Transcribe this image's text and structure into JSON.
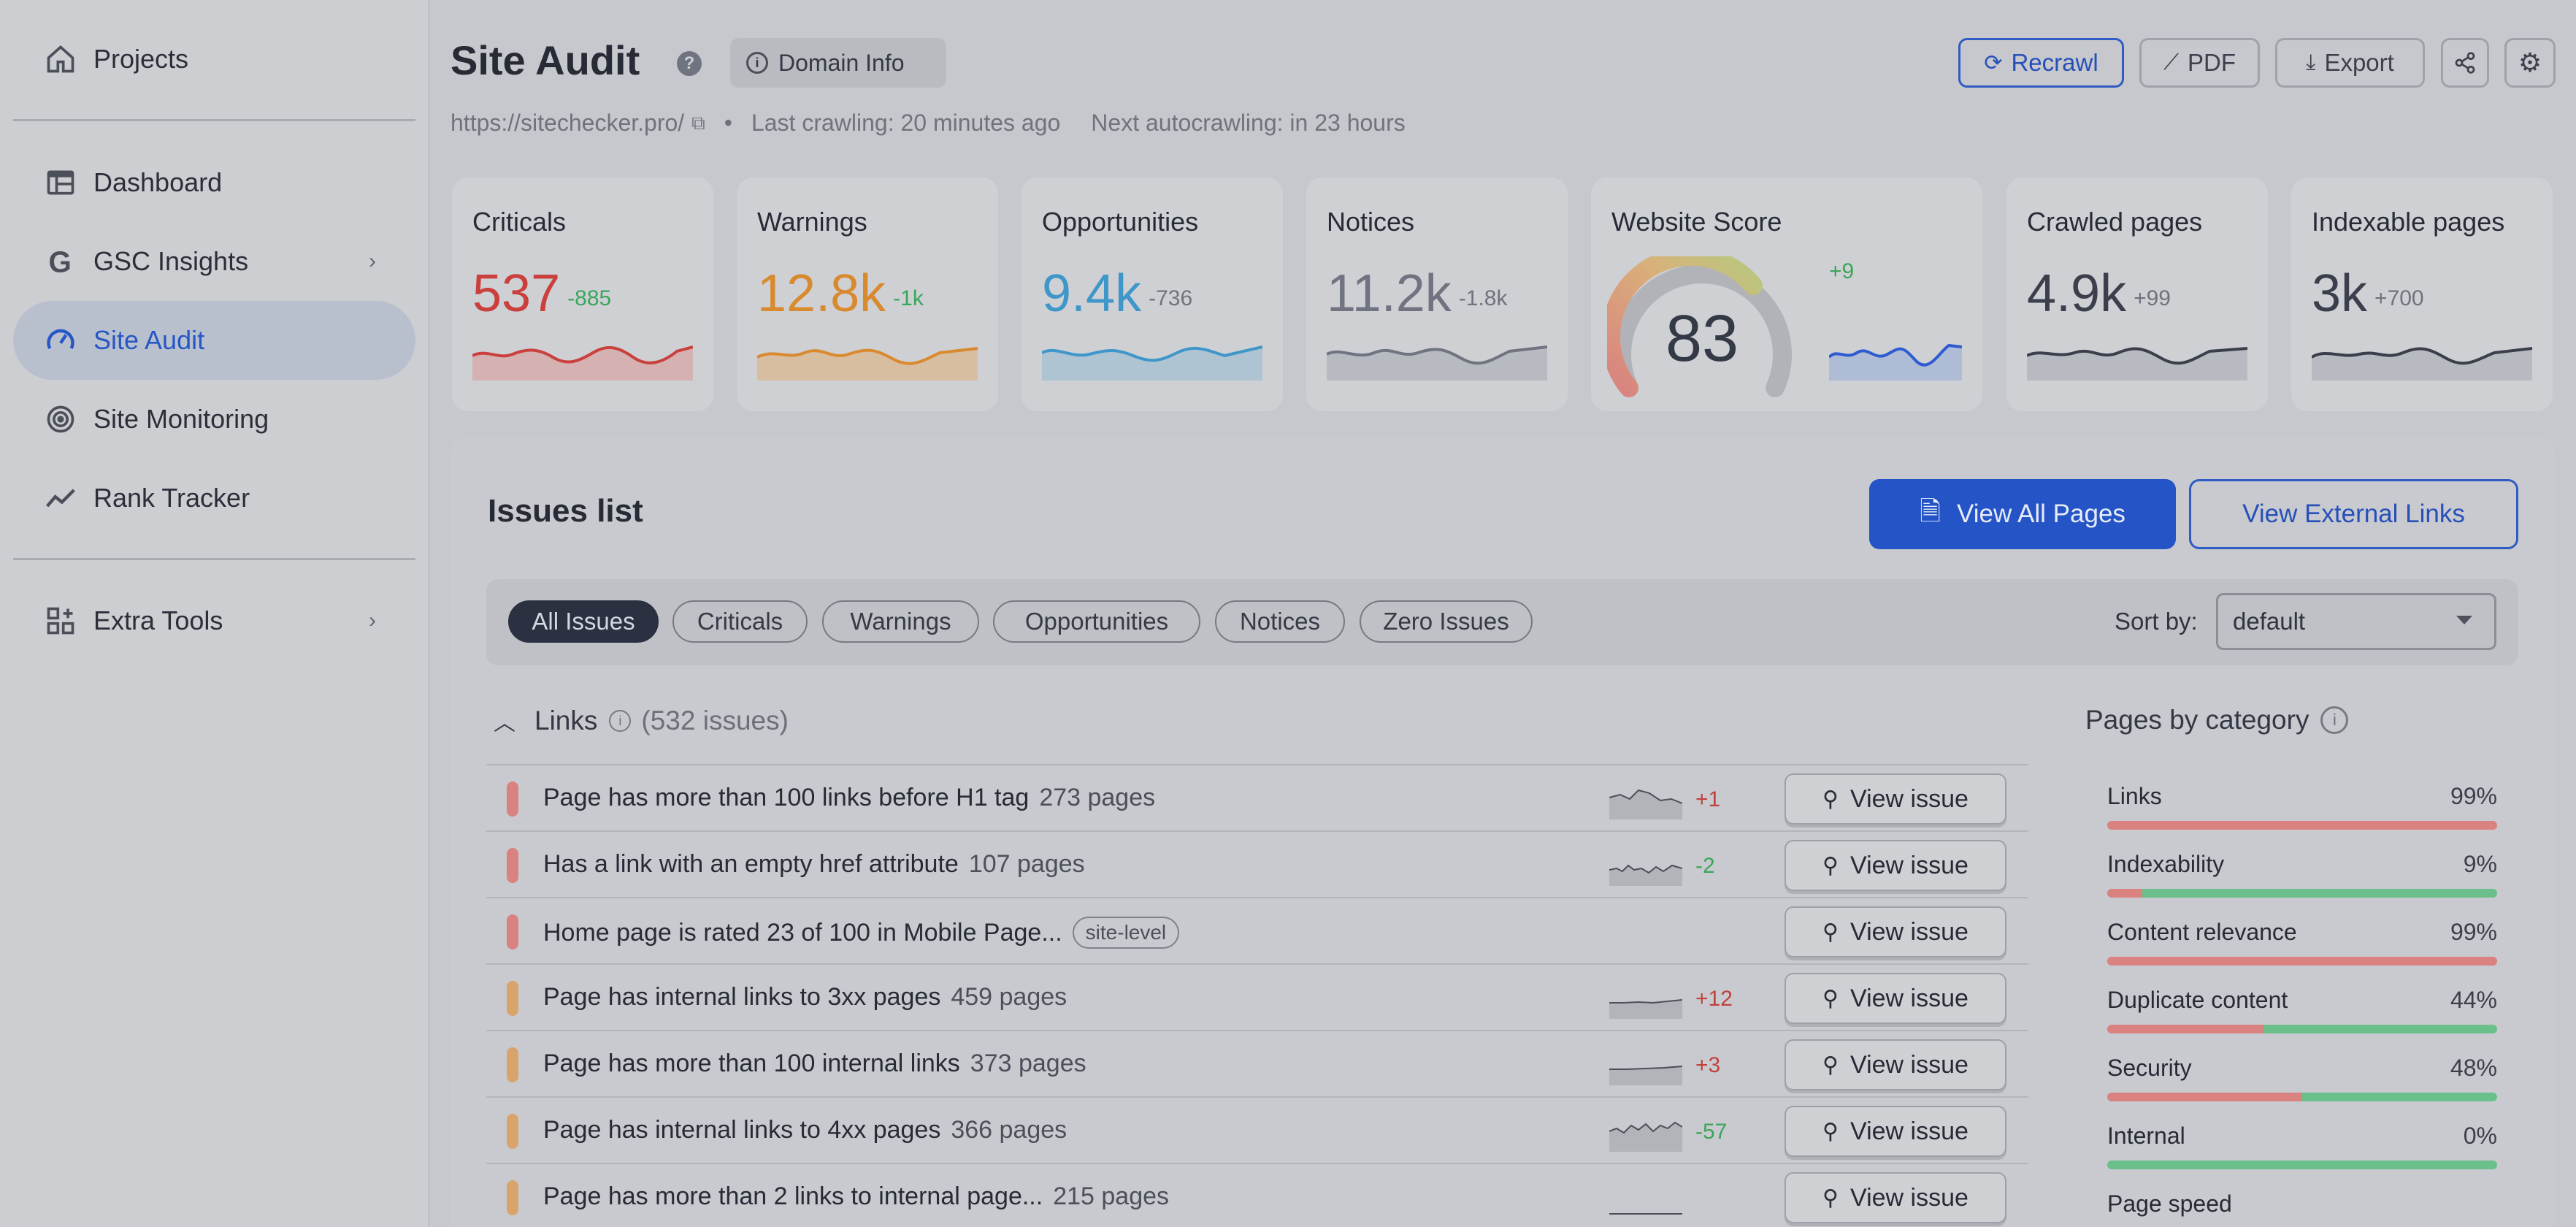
{
  "sidebar": {
    "items": [
      {
        "label": "Projects",
        "icon": "home-icon"
      },
      {
        "label": "Dashboard",
        "icon": "table-icon"
      },
      {
        "label": "GSC Insights",
        "icon": "google-icon"
      },
      {
        "label": "Site Audit",
        "icon": "gauge-icon",
        "active": true
      },
      {
        "label": "Site Monitoring",
        "icon": "radar-icon"
      },
      {
        "label": "Rank Tracker",
        "icon": "trend-icon"
      },
      {
        "label": "Extra Tools",
        "icon": "grid-plus-icon"
      }
    ]
  },
  "header": {
    "title": "Site Audit",
    "help": "?",
    "domain_info": "Domain Info",
    "url": "https://sitechecker.pro/",
    "last_crawl": "Last crawling: 20 minutes ago",
    "next_crawl": "Next autocrawling: in 23 hours",
    "buttons": {
      "recrawl": "Recrawl",
      "pdf": "PDF",
      "export": "Export"
    }
  },
  "stats": {
    "criticals": {
      "label": "Criticals",
      "value": "537",
      "delta": "-885"
    },
    "warnings": {
      "label": "Warnings",
      "value": "12.8k",
      "delta": "-1k"
    },
    "opportunities": {
      "label": "Opportunities",
      "value": "9.4k",
      "delta": "-736"
    },
    "notices": {
      "label": "Notices",
      "value": "11.2k",
      "delta": "-1.8k"
    },
    "score": {
      "label": "Website Score",
      "value": "83",
      "delta": "+9"
    },
    "crawled": {
      "label": "Crawled pages",
      "value": "4.9k",
      "delta": "+99"
    },
    "indexable": {
      "label": "Indexable pages",
      "value": "3k",
      "delta": "+700"
    }
  },
  "colors": {
    "critical": "#c9403d",
    "warning": "#d98a2f",
    "opportunity": "#3f97c9",
    "notice": "#6f7480",
    "primary": "#2554c7",
    "success": "#3aa65a"
  },
  "issues": {
    "title": "Issues list",
    "view_all": "View All Pages",
    "view_external": "View External Links",
    "filters": [
      "All Issues",
      "Criticals",
      "Warnings",
      "Opportunities",
      "Notices",
      "Zero Issues"
    ],
    "sort_label": "Sort by:",
    "sort_value": "default",
    "group": {
      "name": "Links",
      "count": "(532 issues)"
    },
    "view_issue_label": "View issue",
    "rows": [
      {
        "text": "Page has more than 100 links before H1 tag",
        "pages": "273 pages",
        "change": "+1",
        "severity": "critical"
      },
      {
        "text": "Has a link with an empty href attribute",
        "pages": "107 pages",
        "change": "-2",
        "severity": "critical"
      },
      {
        "text": "Home page is rated 23 of 100 in Mobile Page...",
        "tag": "site-level",
        "severity": "critical"
      },
      {
        "text": "Page has internal links to 3xx pages",
        "pages": "459 pages",
        "change": "+12",
        "severity": "warning"
      },
      {
        "text": "Page has more than 100 internal links",
        "pages": "373 pages",
        "change": "+3",
        "severity": "warning"
      },
      {
        "text": "Page has internal links to 4xx pages",
        "pages": "366 pages",
        "change": "-57",
        "severity": "warning"
      },
      {
        "text": "Page has more than 2 links to internal page...",
        "pages": "215 pages",
        "severity": "warning"
      }
    ]
  },
  "categories": {
    "title": "Pages by category",
    "items": [
      {
        "name": "Links",
        "pct": "99%",
        "fill": 1.0
      },
      {
        "name": "Indexability",
        "pct": "9%",
        "fill": 0.09
      },
      {
        "name": "Content relevance",
        "pct": "99%",
        "fill": 1.0
      },
      {
        "name": "Duplicate content",
        "pct": "44%",
        "fill": 0.4
      },
      {
        "name": "Security",
        "pct": "48%",
        "fill": 0.5
      },
      {
        "name": "Internal",
        "pct": "0%",
        "fill": 0.0
      },
      {
        "name": "Page speed",
        "pct": "",
        "fill": 0.0
      }
    ]
  }
}
